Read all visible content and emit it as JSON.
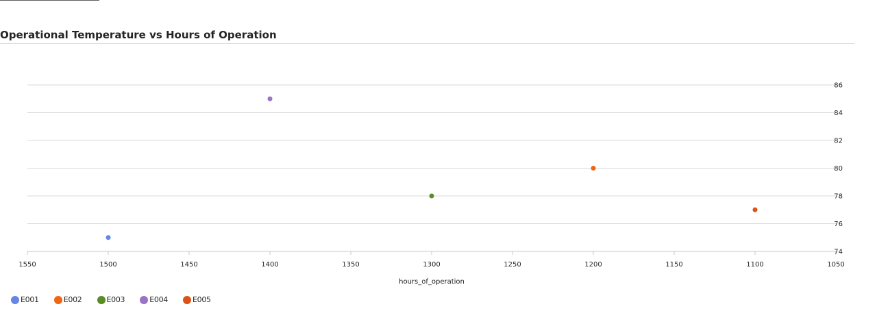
{
  "page": {
    "title": "Operational Temperature vs Hours of Operation"
  },
  "chart_data": {
    "type": "scatter",
    "title": "Operational Temperature vs Hours of Operation",
    "xlabel": "hours_of_operation",
    "ylabel": "",
    "xlim": [
      1550,
      1050
    ],
    "ylim": [
      74,
      86
    ],
    "x_ticks": [
      1550,
      1500,
      1450,
      1400,
      1350,
      1300,
      1250,
      1200,
      1150,
      1100,
      1050
    ],
    "y_ticks": [
      74,
      76,
      78,
      80,
      82,
      84,
      86
    ],
    "x_reversed": true,
    "y_axis_position": "right",
    "grid": true,
    "legend_position": "bottom-left",
    "series": [
      {
        "name": "E001",
        "color": "#6686e6",
        "x": [
          1500
        ],
        "y": [
          75
        ]
      },
      {
        "name": "E002",
        "color": "#f0650f",
        "x": [
          1200
        ],
        "y": [
          80
        ]
      },
      {
        "name": "E003",
        "color": "#5a8b26",
        "x": [
          1300
        ],
        "y": [
          78
        ]
      },
      {
        "name": "E004",
        "color": "#9b72c4",
        "x": [
          1400
        ],
        "y": [
          85
        ]
      },
      {
        "name": "E005",
        "color": "#d9541a",
        "x": [
          1100
        ],
        "y": [
          77
        ]
      }
    ]
  }
}
